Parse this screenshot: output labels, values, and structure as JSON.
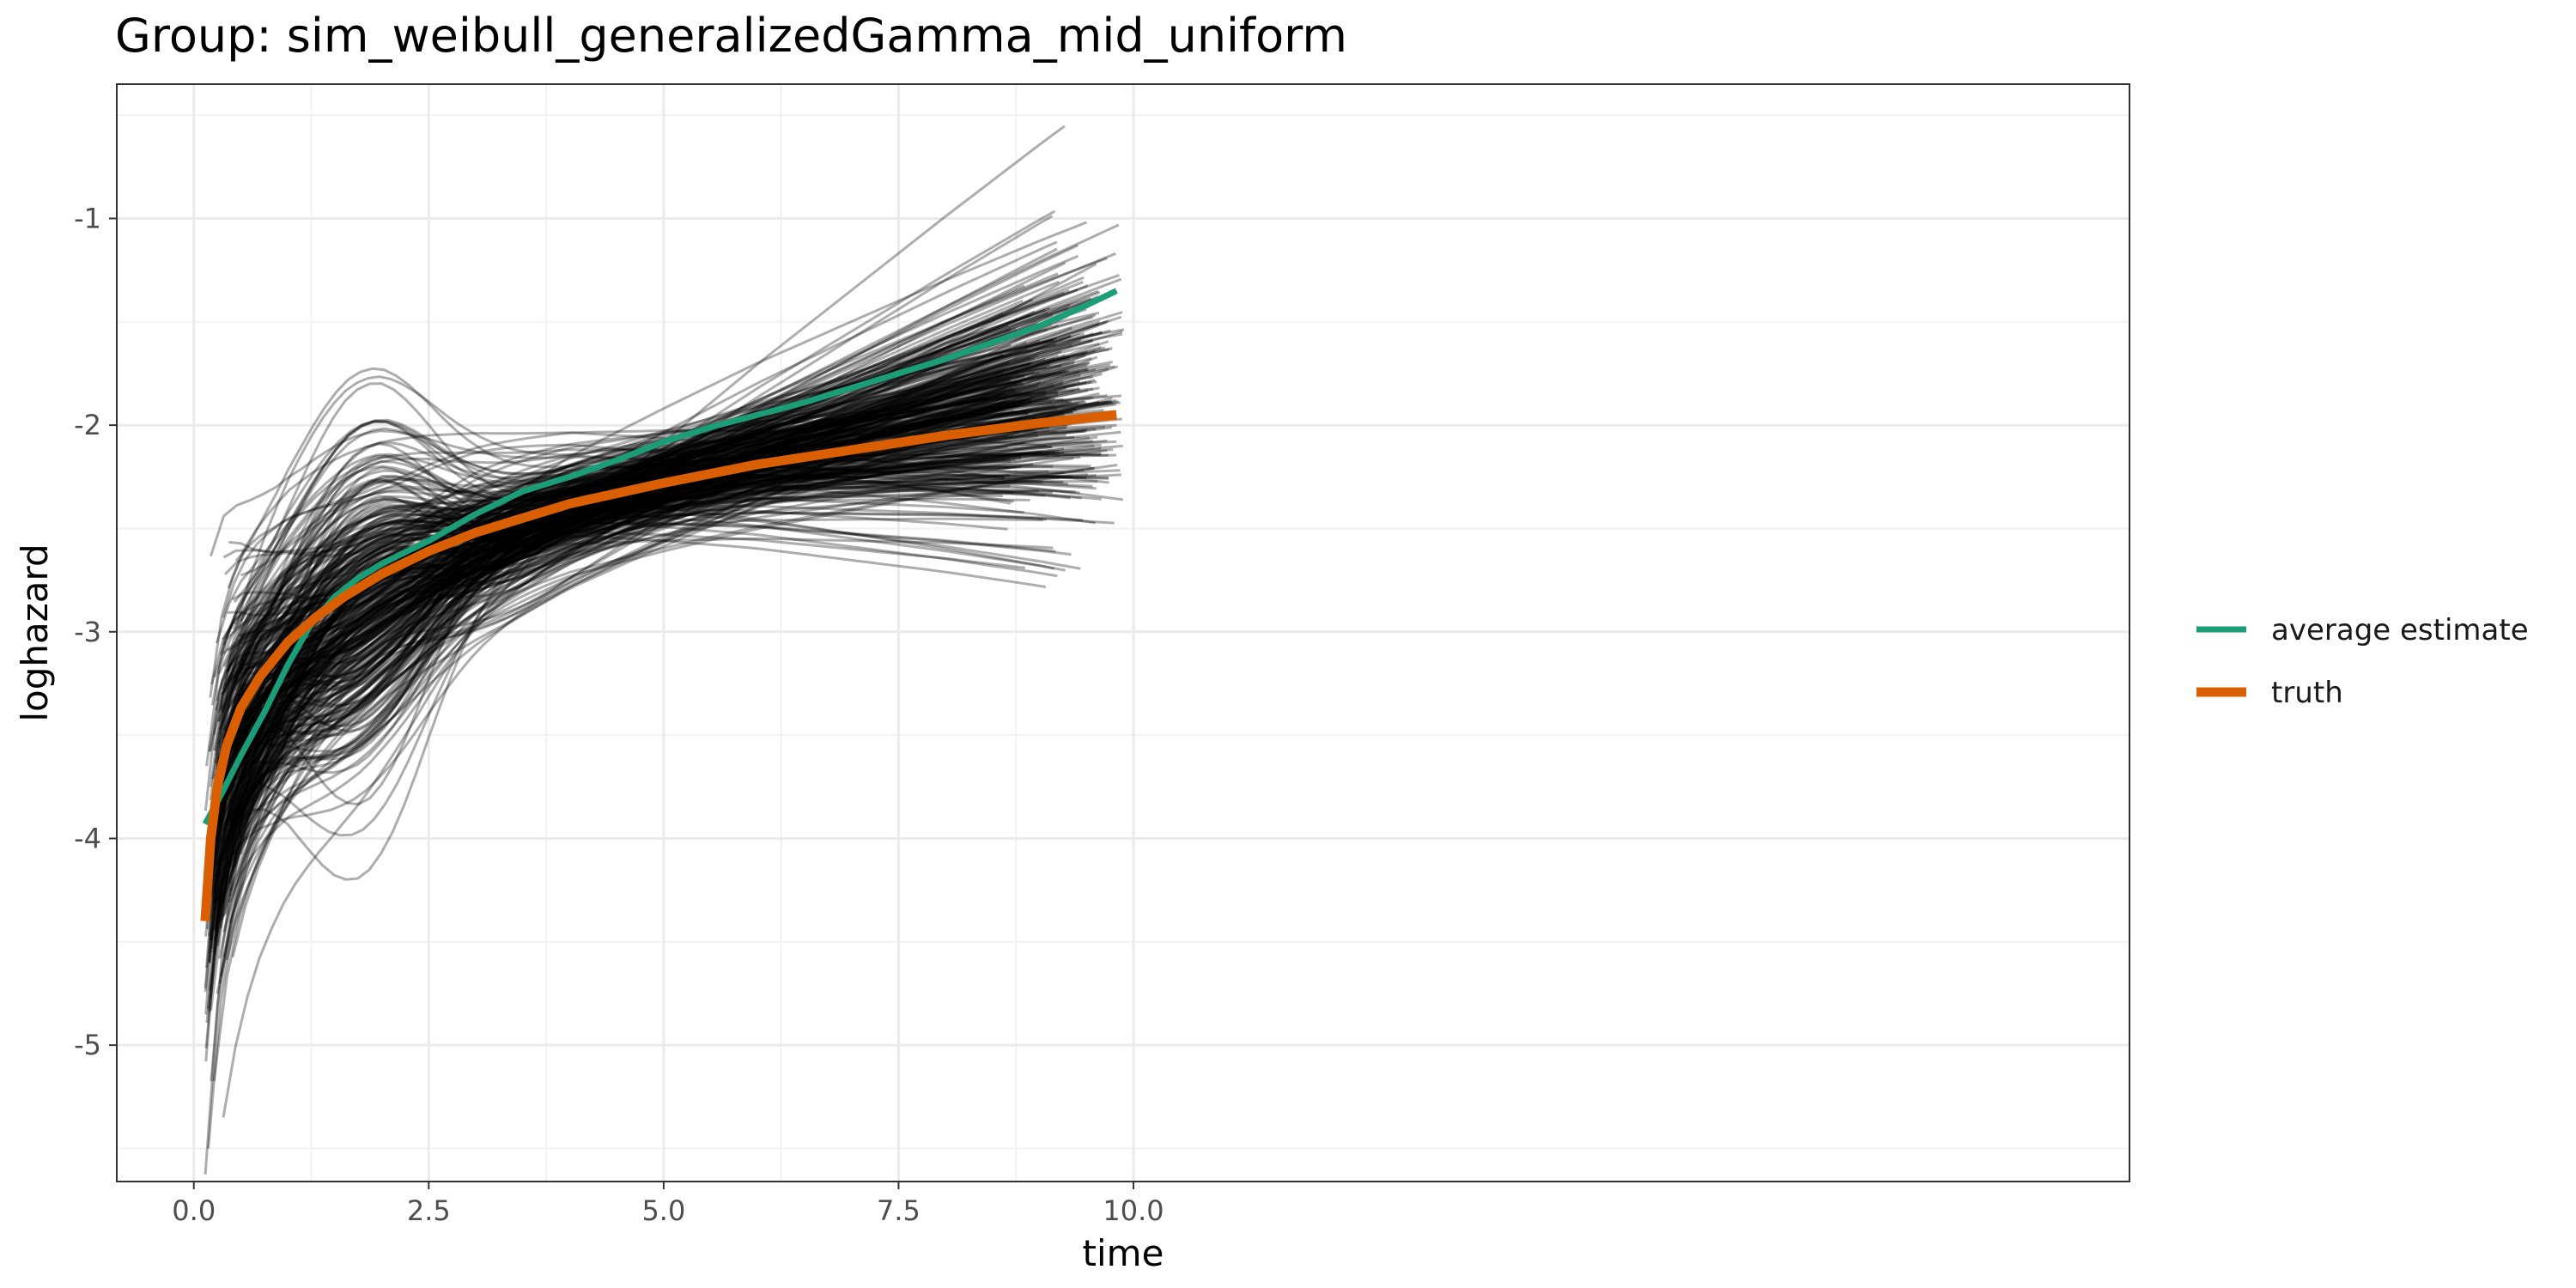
{
  "chart_data": {
    "type": "line",
    "title": "Group: sim_weibull_generalizedGamma_mid_uniform",
    "xlabel": "time",
    "ylabel": "loghazard",
    "xlim": [
      -0.82,
      20.6
    ],
    "ylim": [
      -5.66,
      -0.35
    ],
    "x_ticks": [
      0,
      2.5,
      5,
      7.5,
      10
    ],
    "x_tick_labels": [
      "0.0",
      "2.5",
      "5.0",
      "7.5",
      "10.0"
    ],
    "y_ticks": [
      -5,
      -4,
      -3,
      -2,
      -1
    ],
    "y_tick_labels": [
      "-5",
      "-4",
      "-3",
      "-2",
      "-1"
    ],
    "grid": true,
    "legend_position": "right",
    "series": [
      {
        "name": "average estimate",
        "color": "#1b9e77",
        "x": [
          0.12,
          0.3,
          0.5,
          0.75,
          1.0,
          1.25,
          1.5,
          1.75,
          2.0,
          2.5,
          3.0,
          3.5,
          4.0,
          4.5,
          5.0,
          5.5,
          6.0,
          6.5,
          7.0,
          7.5,
          8.0,
          8.5,
          9.0,
          9.5,
          9.82
        ],
        "y": [
          -3.93,
          -3.78,
          -3.6,
          -3.39,
          -3.16,
          -2.96,
          -2.83,
          -2.74,
          -2.67,
          -2.56,
          -2.43,
          -2.32,
          -2.25,
          -2.17,
          -2.08,
          -2.01,
          -1.95,
          -1.89,
          -1.82,
          -1.75,
          -1.68,
          -1.6,
          -1.52,
          -1.42,
          -1.35
        ]
      },
      {
        "name": "truth",
        "color": "#d95f02",
        "x": [
          0.12,
          0.18,
          0.25,
          0.35,
          0.5,
          0.7,
          1.0,
          1.3,
          1.6,
          2.0,
          2.5,
          3.0,
          3.5,
          4.0,
          5.0,
          6.0,
          7.0,
          8.0,
          9.0,
          9.82
        ],
        "y": [
          -4.4,
          -4.0,
          -3.75,
          -3.55,
          -3.37,
          -3.22,
          -3.05,
          -2.93,
          -2.83,
          -2.72,
          -2.61,
          -2.52,
          -2.45,
          -2.38,
          -2.28,
          -2.19,
          -2.12,
          -2.05,
          -1.99,
          -1.95
        ]
      }
    ]
  }
}
